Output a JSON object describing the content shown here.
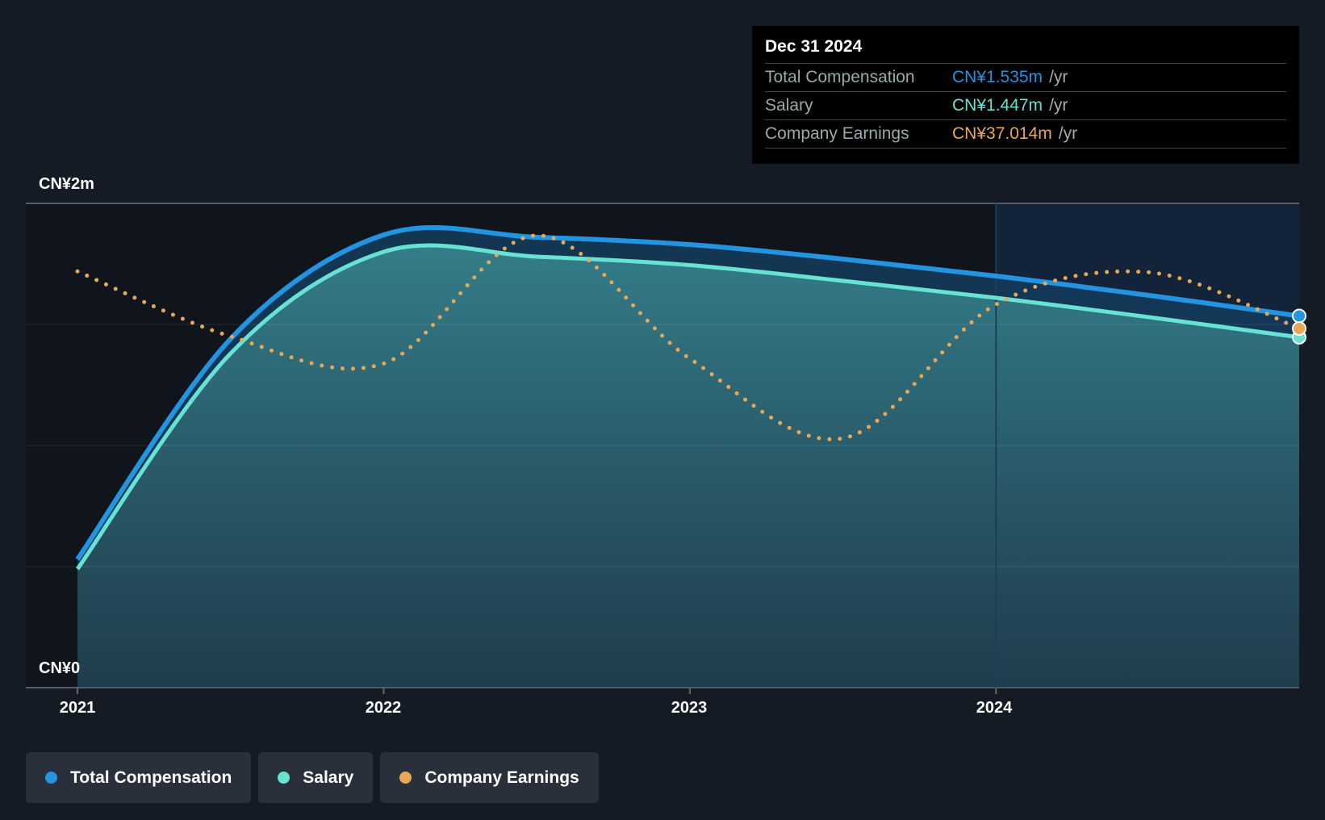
{
  "tooltip": {
    "date": "Dec 31 2024",
    "rows": [
      {
        "label": "Total Compensation",
        "value": "CN¥1.535m",
        "unit": "/yr",
        "color": "#2394e0"
      },
      {
        "label": "Salary",
        "value": "CN¥1.447m",
        "unit": "/yr",
        "color": "#67e3d4"
      },
      {
        "label": "Company Earnings",
        "value": "CN¥37.014m",
        "unit": "/yr",
        "color": "#e8a857"
      }
    ]
  },
  "legend": [
    {
      "label": "Total Compensation",
      "color": "#2394e0"
    },
    {
      "label": "Salary",
      "color": "#67e3d4"
    },
    {
      "label": "Company Earnings",
      "color": "#e8a857"
    }
  ],
  "chart_data": {
    "type": "line",
    "y_ticks": [
      "CN¥2m",
      "CN¥0"
    ],
    "ylim": [
      0,
      2
    ],
    "x_ticks": [
      "2021",
      "2022",
      "2023",
      "2024"
    ],
    "xlim": [
      2021,
      2025
    ],
    "x": [
      2021.0,
      2021.5,
      2022.0,
      2022.5,
      2023.0,
      2023.5,
      2024.0,
      2024.5,
      2024.99
    ],
    "series": [
      {
        "name": "Total Compensation",
        "unit": "CN¥m",
        "values": [
          0.53,
          1.44,
          1.87,
          1.86,
          1.83,
          1.77,
          1.7,
          1.62,
          1.535
        ]
      },
      {
        "name": "Salary",
        "unit": "CN¥m",
        "values": [
          0.49,
          1.38,
          1.8,
          1.78,
          1.745,
          1.68,
          1.61,
          1.53,
          1.447
        ]
      },
      {
        "name": "Company Earnings",
        "unit": "CN¥m",
        "secondary_axis": true,
        "values": [
          42.9,
          36.2,
          33.4,
          46.6,
          33.9,
          25.7,
          39.5,
          42.8,
          37.014
        ]
      }
    ],
    "highlight_from": 2024
  }
}
